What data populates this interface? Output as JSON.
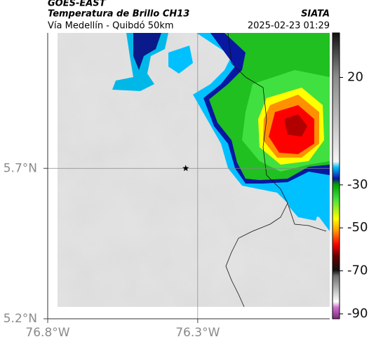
{
  "header": {
    "source": "GOES-EAST",
    "product": "Temperatura de Brillo CH13",
    "agency": "SIATA",
    "route": "Vía Medellín - Quibdó 50km",
    "datetime": "2025-02-23 01:29"
  },
  "map": {
    "xlim": [
      -76.8,
      -75.86
    ],
    "ylim": [
      5.2,
      6.15
    ],
    "xticks": [
      {
        "value": -76.8,
        "label": "76.8°W"
      },
      {
        "value": -76.3,
        "label": "76.3°W"
      }
    ],
    "yticks": [
      {
        "value": 5.2,
        "label": "5.2°N"
      },
      {
        "value": 5.7,
        "label": "5.7°N"
      }
    ],
    "marker": {
      "lon": -76.34,
      "lat": 5.7
    }
  },
  "colorbar": {
    "lim": [
      -92.3,
      40.7
    ],
    "ticks": [
      20,
      -30,
      -50,
      -70,
      -90
    ]
  }
}
